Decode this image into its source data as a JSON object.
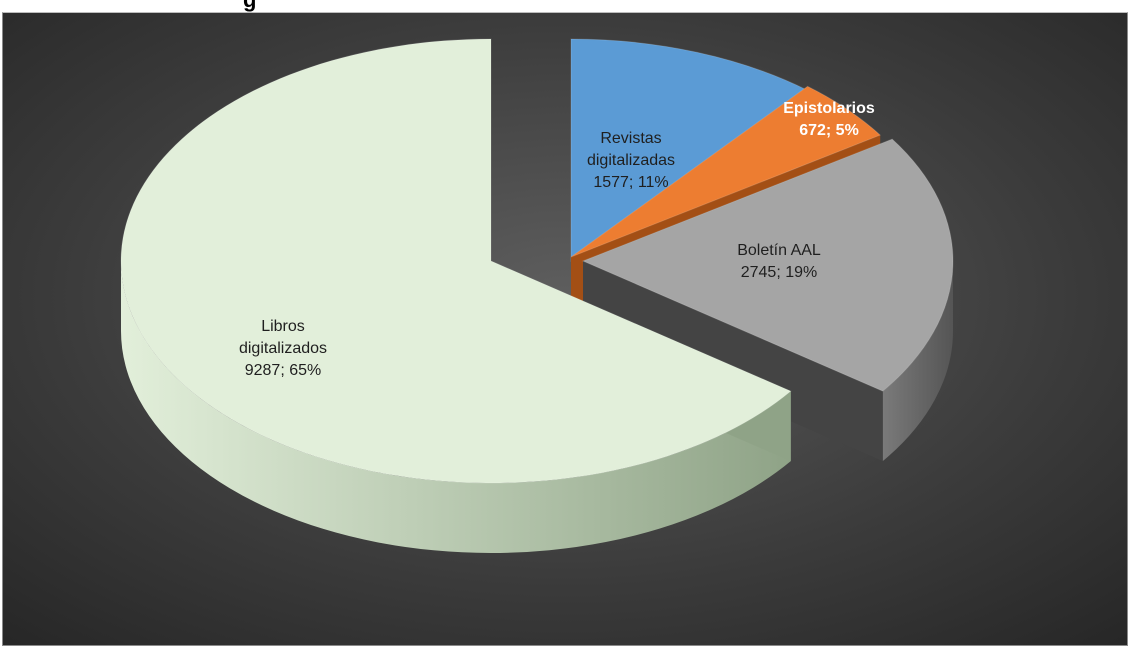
{
  "header": {
    "title_fragment": "g"
  },
  "chart_data": {
    "type": "pie",
    "style": "3d-exploded",
    "title": "",
    "categories": [
      "Revistas digitalizadas",
      "Epistolarios",
      "Boletín AAL",
      "Libros digitalizados"
    ],
    "values": [
      1577,
      672,
      2745,
      9287
    ],
    "percents": [
      11,
      5,
      19,
      65
    ],
    "labels": [
      {
        "name_lines": [
          "Revistas",
          "digitalizadas"
        ],
        "value_text": "1577; 11%"
      },
      {
        "name_lines": [
          "Epistolarios"
        ],
        "value_text": "672; 5%"
      },
      {
        "name_lines": [
          "Boletín AAL"
        ],
        "value_text": "2745; 19%"
      },
      {
        "name_lines": [
          "Libros",
          "digitalizados"
        ],
        "value_text": "9287; 65%"
      }
    ],
    "colors": [
      "#5b9bd5",
      "#ed7d31",
      "#a5a5a5",
      "#e2efda"
    ],
    "background": "#3a3a3a",
    "legend": "none"
  }
}
